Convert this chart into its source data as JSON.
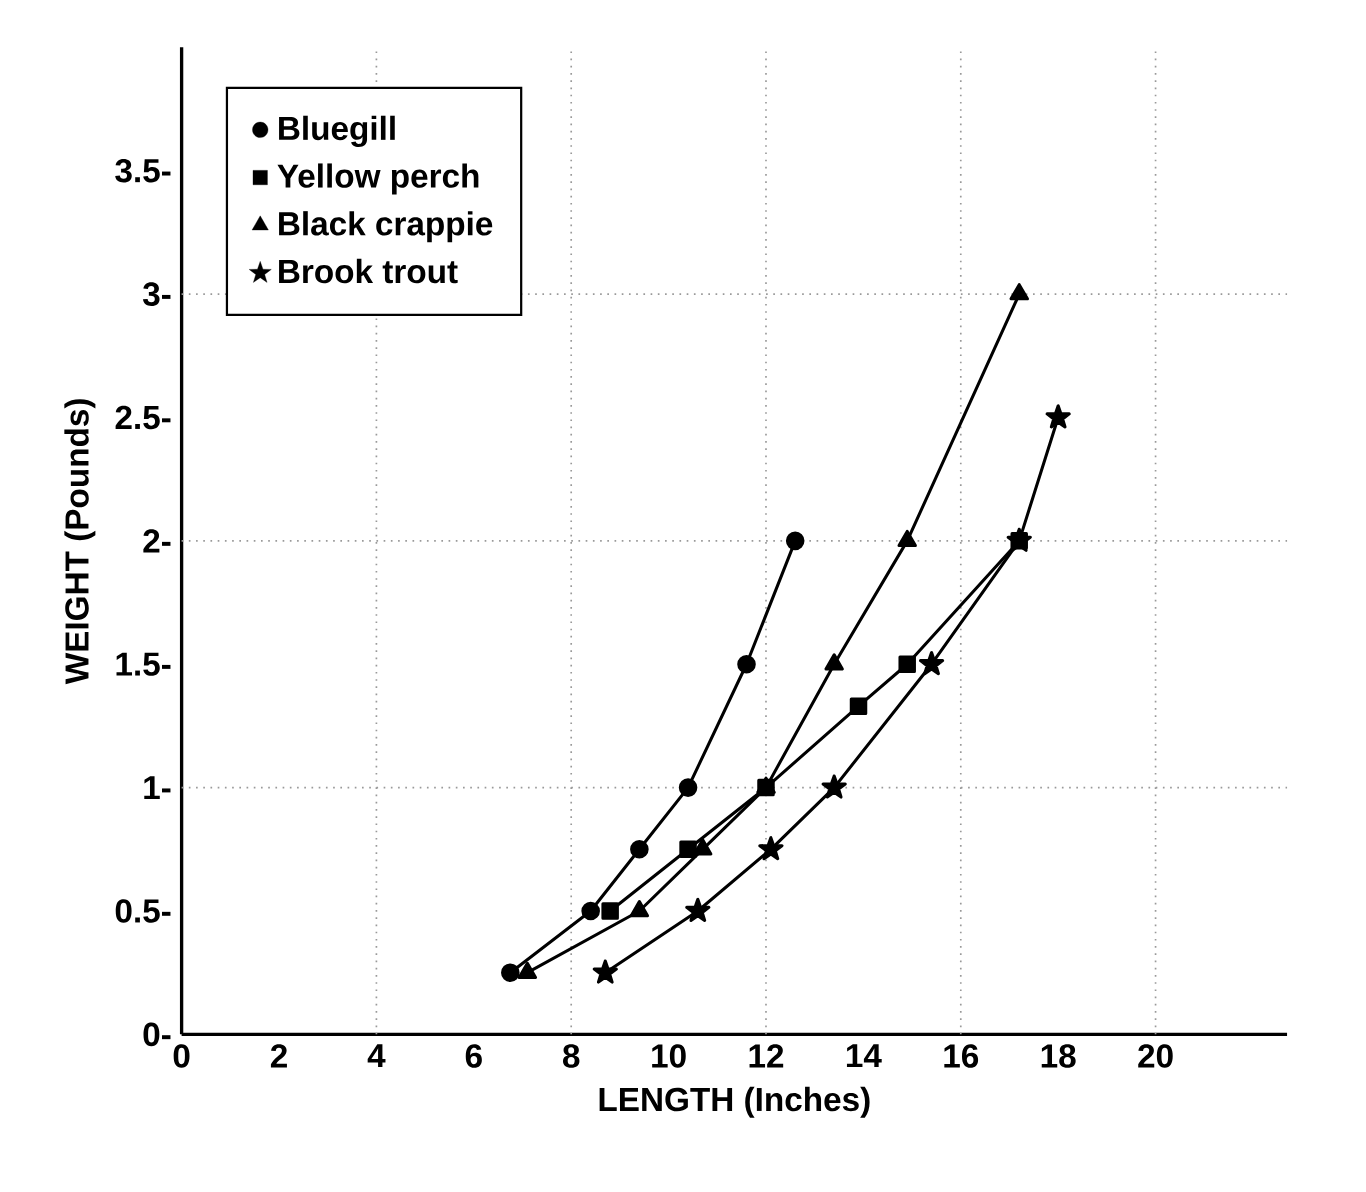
{
  "chart_data": {
    "type": "line",
    "xlabel": "LENGTH (Inches)",
    "ylabel": "WEIGHT (Pounds)",
    "xlim": [
      0,
      22.7
    ],
    "ylim": [
      0,
      4
    ],
    "xticks": [
      0,
      2,
      4,
      6,
      8,
      10,
      12,
      14,
      16,
      18,
      20
    ],
    "yticks": [
      {
        "value": 0,
        "label": "0-"
      },
      {
        "value": 0.5,
        "label": "0.5-"
      },
      {
        "value": 1,
        "label": "1-"
      },
      {
        "value": 1.5,
        "label": "1.5-"
      },
      {
        "value": 2,
        "label": "2-"
      },
      {
        "value": 2.5,
        "label": "2.5-"
      },
      {
        "value": 3,
        "label": "3-"
      },
      {
        "value": 3.5,
        "label": "3.5-"
      }
    ],
    "legend": "top left",
    "ref_lines": [
      {
        "axis": "x",
        "value": 4,
        "color": "#999999",
        "line_style": "dotted"
      },
      {
        "axis": "x",
        "value": 8,
        "color": "#999999",
        "line_style": "dotted"
      },
      {
        "axis": "x",
        "value": 12,
        "color": "#999999",
        "line_style": "dotted"
      },
      {
        "axis": "x",
        "value": 16,
        "color": "#999999",
        "line_style": "dotted"
      },
      {
        "axis": "x",
        "value": 20,
        "color": "#999999",
        "line_style": "dotted"
      },
      {
        "axis": "y",
        "value": 1,
        "color": "#999999",
        "line_style": "dotted"
      },
      {
        "axis": "y",
        "value": 2,
        "color": "#999999",
        "line_style": "dotted"
      },
      {
        "axis": "y",
        "value": 3,
        "color": "#999999",
        "line_style": "dotted"
      }
    ],
    "series": [
      {
        "name": "Bluegill",
        "color": "#000000",
        "marker": "circle",
        "x": [
          6.75,
          8.4,
          9.4,
          10.4,
          11.6,
          12.6
        ],
        "values": [
          0.25,
          0.5,
          0.75,
          1,
          1.5,
          2
        ]
      },
      {
        "name": "Yellow perch",
        "color": "#000000",
        "marker": "square",
        "x": [
          8.8,
          10.4,
          12,
          13.9,
          14.9,
          17.2
        ],
        "values": [
          0.5,
          0.75,
          1,
          1.33,
          1.5,
          2
        ]
      },
      {
        "name": "Black crappie",
        "color": "#000000",
        "marker": "triangle",
        "x": [
          7.1,
          9.4,
          10.7,
          12,
          13.4,
          14.9,
          17.2
        ],
        "values": [
          0.25,
          0.5,
          0.75,
          1,
          1.5,
          2,
          3
        ]
      },
      {
        "name": "Brook trout",
        "color": "#000000",
        "marker": "star",
        "x": [
          8.7,
          10.6,
          12.1,
          13.4,
          15.4,
          17.2,
          18
        ],
        "values": [
          0.25,
          0.5,
          0.75,
          1,
          1.5,
          2,
          2.5
        ]
      }
    ]
  }
}
